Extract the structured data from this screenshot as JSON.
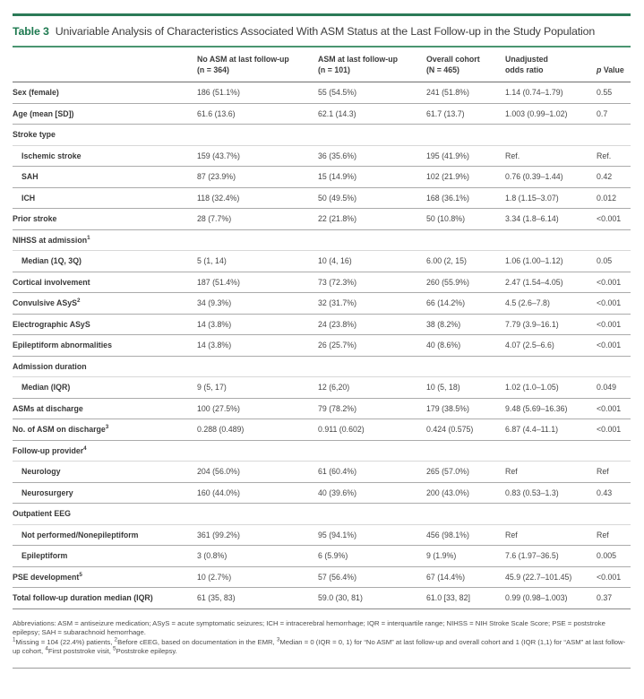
{
  "page": {
    "title_label": "Table 3",
    "title": "Univariable Analysis of Characteristics Associated With ASM Status at the Last Follow-up in the Study Population"
  },
  "colors": {
    "top_bar_green": "#2b7a57",
    "accent_green": "#1e7a50",
    "rule_green": "#4a9571"
  },
  "table": {
    "columns": [
      {
        "line1": "No ASM at last follow-up",
        "line2": "(n = 364)"
      },
      {
        "line1": "ASM at last follow-up",
        "line2": "(n = 101)"
      },
      {
        "line1": "Overall cohort",
        "line2": "(N = 465)"
      },
      {
        "line1": "Unadjusted",
        "line2": "odds ratio"
      },
      {
        "italic": "p",
        "rest": " Value"
      }
    ],
    "rows": [
      {
        "label": "Sex (female)",
        "type": "data",
        "values": [
          "186 (51.1%)",
          "55 (54.5%)",
          "241 (51.8%)",
          "1.14 (0.74–1.79)",
          "0.55"
        ]
      },
      {
        "label": "Age (mean [SD])",
        "type": "data",
        "values": [
          "61.6 (13.6)",
          "62.1 (14.3)",
          "61.7 (13.7)",
          "1.003 (0.99–1.02)",
          "0.7"
        ]
      },
      {
        "label": "Stroke type",
        "type": "section",
        "values": [
          "",
          "",
          "",
          "",
          ""
        ]
      },
      {
        "label": "Ischemic stroke",
        "type": "data",
        "indent": true,
        "values": [
          "159 (43.7%)",
          "36 (35.6%)",
          "195 (41.9%)",
          "Ref.",
          "Ref."
        ]
      },
      {
        "label": "SAH",
        "type": "data",
        "indent": true,
        "values": [
          "87 (23.9%)",
          "15 (14.9%)",
          "102 (21.9%)",
          "0.76 (0.39–1.44)",
          "0.42"
        ]
      },
      {
        "label": "ICH",
        "type": "data",
        "indent": true,
        "values": [
          "118 (32.4%)",
          "50 (49.5%)",
          "168 (36.1%)",
          "1.8 (1.15–3.07)",
          "0.012"
        ]
      },
      {
        "label": "Prior stroke",
        "type": "data",
        "values": [
          "28 (7.7%)",
          "22 (21.8%)",
          "50 (10.8%)",
          "3.34 (1.8–6.14)",
          "<0.001"
        ]
      },
      {
        "label": "NIHSS at admission",
        "sup": "1",
        "type": "section",
        "values": [
          "",
          "",
          "",
          "",
          ""
        ]
      },
      {
        "label": "Median (1Q, 3Q)",
        "type": "data",
        "indent": true,
        "values": [
          "5 (1, 14)",
          "10 (4, 16)",
          "6.00 (2, 15)",
          "1.06 (1.00–1.12)",
          "0.05"
        ]
      },
      {
        "label": "Cortical involvement",
        "type": "data",
        "values": [
          "187 (51.4%)",
          "73 (72.3%)",
          "260 (55.9%)",
          "2.47 (1.54–4.05)",
          "<0.001"
        ]
      },
      {
        "label": "Convulsive ASyS",
        "sup": "2",
        "type": "data",
        "values": [
          "34 (9.3%)",
          "32 (31.7%)",
          "66 (14.2%)",
          "4.5 (2.6–7.8)",
          "<0.001"
        ]
      },
      {
        "label": "Electrographic ASyS",
        "type": "data",
        "values": [
          "14 (3.8%)",
          "24 (23.8%)",
          "38 (8.2%)",
          "7.79 (3.9–16.1)",
          "<0.001"
        ]
      },
      {
        "label": "Epileptiform abnormalities",
        "type": "data",
        "values": [
          "14 (3.8%)",
          "26 (25.7%)",
          "40 (8.6%)",
          "4.07 (2.5–6.6)",
          "<0.001"
        ]
      },
      {
        "label": "Admission duration",
        "type": "section",
        "values": [
          "",
          "",
          "",
          "",
          ""
        ]
      },
      {
        "label": "Median (IQR)",
        "type": "data",
        "indent": true,
        "values": [
          "9 (5, 17)",
          "12 (6,20)",
          "10 (5, 18)",
          "1.02 (1.0–1.05)",
          "0.049"
        ]
      },
      {
        "label": "ASMs at discharge",
        "type": "data",
        "values": [
          "100 (27.5%)",
          "79 (78.2%)",
          "179 (38.5%)",
          "9.48 (5.69–16.36)",
          "<0.001"
        ]
      },
      {
        "label": "No. of ASM on discharge",
        "sup": "3",
        "type": "data",
        "values": [
          "0.288 (0.489)",
          "0.911 (0.602)",
          "0.424 (0.575)",
          "6.87 (4.4–11.1)",
          "<0.001"
        ]
      },
      {
        "label": "Follow-up provider",
        "sup": "4",
        "type": "section",
        "values": [
          "",
          "",
          "",
          "",
          ""
        ]
      },
      {
        "label": "Neurology",
        "type": "data",
        "indent": true,
        "values": [
          "204 (56.0%)",
          "61 (60.4%)",
          "265 (57.0%)",
          "Ref",
          "Ref"
        ]
      },
      {
        "label": "Neurosurgery",
        "type": "data",
        "indent": true,
        "values": [
          "160 (44.0%)",
          "40 (39.6%)",
          "200 (43.0%)",
          "0.83 (0.53–1.3)",
          "0.43"
        ]
      },
      {
        "label": "Outpatient EEG",
        "type": "section",
        "values": [
          "",
          "",
          "",
          "",
          ""
        ]
      },
      {
        "label": "Not performed/Nonepileptiform",
        "type": "data",
        "indent": true,
        "values": [
          "361 (99.2%)",
          "95 (94.1%)",
          "456 (98.1%)",
          "Ref",
          "Ref"
        ]
      },
      {
        "label": "Epileptiform",
        "type": "data",
        "indent": true,
        "values": [
          "3 (0.8%)",
          "6 (5.9%)",
          "9 (1.9%)",
          "7.6 (1.97–36.5)",
          "0.005"
        ]
      },
      {
        "label": "PSE development",
        "sup": "5",
        "type": "data",
        "values": [
          "10 (2.7%)",
          "57 (56.4%)",
          "67 (14.4%)",
          "45.9 (22.7–101.45)",
          "<0.001"
        ]
      },
      {
        "label": "Total follow-up duration median (IQR)",
        "type": "data",
        "values": [
          "61 (35, 83)",
          "59.0 (30, 81)",
          "61.0 [33, 82]",
          "0.99 (0.98–1.003)",
          "0.37"
        ]
      }
    ]
  },
  "footnotes": {
    "abbreviations": "Abbreviations: ASM = antiseizure medication; ASyS = acute symptomatic seizures; ICH = intracerebral hemorrhage; IQR = interquartile range; NIHSS = NIH Stroke Scale Score; PSE = poststroke epilepsy; SAH = subarachnoid hemorrhage.",
    "notes": [
      {
        "sup": "1",
        "text": "Missing = 104 (22.4%) patients, "
      },
      {
        "sup": "2",
        "text": "Before cEEG, based on documentation in the EMR, "
      },
      {
        "sup": "3",
        "text": "Median = 0 (IQR = 0, 1) for “No ASM” at last follow-up and overall cohort and 1 (IQR (1,1) for “ASM” at last follow-up cohort, "
      },
      {
        "sup": "4",
        "text": "First poststroke visit, "
      },
      {
        "sup": "5",
        "text": "Poststroke epilepsy."
      }
    ]
  }
}
